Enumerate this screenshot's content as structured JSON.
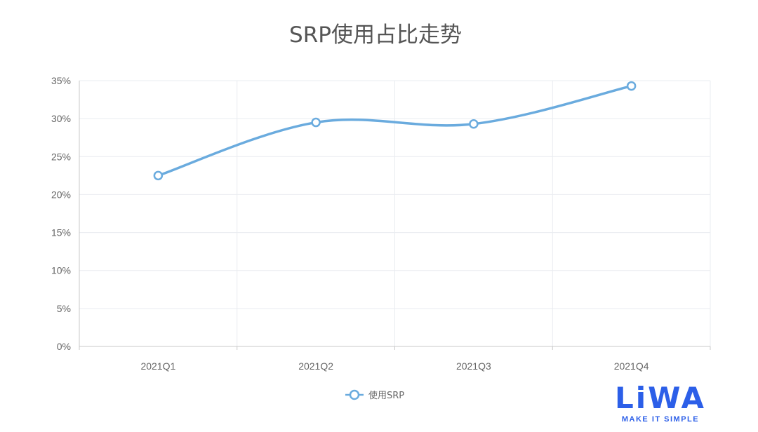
{
  "chart_data": {
    "type": "line",
    "title": "SRP使用占比走势",
    "categories": [
      "2021Q1",
      "2021Q2",
      "2021Q3",
      "2021Q4"
    ],
    "series": [
      {
        "name": "使用SRP",
        "values": [
          22.5,
          29.5,
          29.3,
          34.3
        ],
        "smooth": true
      }
    ],
    "y_ticks": [
      "0%",
      "5%",
      "10%",
      "15%",
      "20%",
      "25%",
      "30%",
      "35%"
    ],
    "ylim": [
      0,
      35
    ],
    "y_unit": "%",
    "grid": true,
    "legend_position": "bottom-center",
    "colors": {
      "series": "#6aabde",
      "grid": "#e9ecf0",
      "axis": "#c8c8c8",
      "tick_text": "#666666"
    }
  },
  "logo": {
    "text": "LiWA",
    "tagline": "MAKE IT SIMPLE",
    "color": "#2c5fe8"
  }
}
